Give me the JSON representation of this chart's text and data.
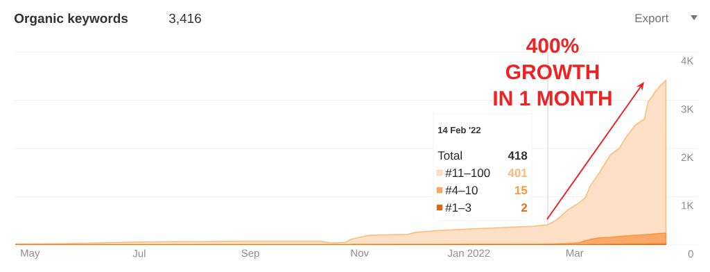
{
  "chart_data": {
    "type": "area",
    "title": "Organic keywords",
    "subtitle": "3,416",
    "legend_title": "14 Feb '22",
    "x": [
      "2021-04-23",
      "2021-05-15",
      "2021-06-01",
      "2021-07-01",
      "2021-08-01",
      "2021-09-01",
      "2021-10-01",
      "2021-10-10",
      "2021-10-16",
      "2021-10-24",
      "2021-10-27",
      "2021-11-01",
      "2021-11-07",
      "2021-11-28",
      "2021-12-02",
      "2021-12-12",
      "2022-01-01",
      "2022-01-20",
      "2022-02-06",
      "2022-02-14",
      "2022-02-19",
      "2022-02-25",
      "2022-03-03",
      "2022-03-07",
      "2022-03-10",
      "2022-03-15",
      "2022-03-21",
      "2022-03-26",
      "2022-03-30",
      "2022-04-04",
      "2022-04-09",
      "2022-04-11",
      "2022-04-13",
      "2022-04-15",
      "2022-04-18",
      "2022-04-21"
    ],
    "stacked": true,
    "series": [
      {
        "name": "#1–3",
        "color": "#d9661f",
        "values": [
          1,
          1,
          1,
          1,
          1,
          1,
          1,
          1,
          1,
          1,
          1,
          1,
          1,
          2,
          2,
          2,
          2,
          2,
          2,
          2,
          2,
          3,
          4,
          5,
          6,
          8,
          10,
          12,
          13,
          15,
          16,
          17,
          18,
          19,
          19,
          20
        ]
      },
      {
        "name": "#4–10",
        "color": "#f8a868",
        "values": [
          5,
          5,
          5,
          5,
          5,
          5,
          5,
          5,
          5,
          5,
          8,
          8,
          10,
          10,
          10,
          10,
          12,
          12,
          14,
          15,
          18,
          25,
          40,
          80,
          110,
          140,
          150,
          165,
          175,
          185,
          195,
          200,
          205,
          210,
          218,
          225
        ]
      },
      {
        "name": "#11–100",
        "color": "#fde0c5",
        "values": [
          14,
          19,
          29,
          54,
          64,
          74,
          74,
          74,
          34,
          44,
          106,
          151,
          189,
          208,
          248,
          278,
          316,
          346,
          374,
          401,
          500,
          692,
          816,
          895,
          1124,
          1362,
          1710,
          1833,
          2062,
          2290,
          2399,
          2753,
          2837,
          2951,
          3073,
          3171
        ]
      }
    ],
    "xlim": [
      "2021-04-22",
      "2022-05-09"
    ],
    "xticks": [
      {
        "value": "2021-05-01",
        "label": "May"
      },
      {
        "value": "2021-07-01",
        "label": "Jul"
      },
      {
        "value": "2021-09-01",
        "label": "Sep"
      },
      {
        "value": "2021-11-01",
        "label": "Nov"
      },
      {
        "value": "2022-01-01",
        "label": "Jan 2022"
      },
      {
        "value": "2022-03-01",
        "label": "Mar"
      }
    ],
    "ylim": [
      0,
      4000
    ],
    "yticks": [
      0,
      {
        "value": 1000,
        "label": "1K"
      },
      {
        "value": 2000,
        "label": "2K"
      },
      {
        "value": 3000,
        "label": "3K"
      },
      {
        "value": 4000,
        "label": "4K"
      }
    ],
    "grid": "y",
    "legend": "bottom",
    "ref_lines": [
      {
        "axis": "x",
        "value": "2022-02-14",
        "color": "#b0b0b0"
      }
    ],
    "annotations": [
      "Total",
      "418",
      "401",
      "15",
      "2",
      "400%",
      "GROWTH",
      "IN 1 MONTH",
      "Export"
    ]
  }
}
